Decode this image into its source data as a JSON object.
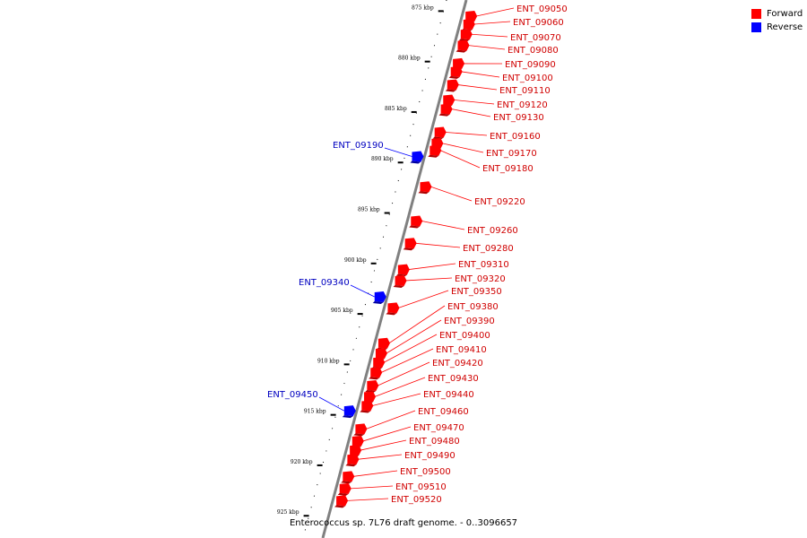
{
  "legend": {
    "forward": {
      "label": "Forward",
      "color": "#ff0000"
    },
    "reverse": {
      "label": "Reverse",
      "color": "#0000ff"
    }
  },
  "caption": "Enterococcus sp. 7L76 draft genome. - 0..3096657",
  "axis": {
    "ticks": [
      {
        "kbp": 875,
        "label": "875 kbp"
      },
      {
        "kbp": 880,
        "label": "880 kbp"
      },
      {
        "kbp": 885,
        "label": "885 kbp"
      },
      {
        "kbp": 890,
        "label": "890 kbp"
      },
      {
        "kbp": 895,
        "label": "895 kbp"
      },
      {
        "kbp": 900,
        "label": "900 kbp"
      },
      {
        "kbp": 905,
        "label": "905 kbp"
      },
      {
        "kbp": 910,
        "label": "910 kbp"
      },
      {
        "kbp": 915,
        "label": "915 kbp"
      },
      {
        "kbp": 920,
        "label": "920 kbp"
      },
      {
        "kbp": 925,
        "label": "925 kbp"
      }
    ]
  },
  "genes": [
    {
      "id": "ENT_09050",
      "strand": "forward",
      "kbp": 875.5
    },
    {
      "id": "ENT_09060",
      "strand": "forward",
      "kbp": 876.3
    },
    {
      "id": "ENT_09070",
      "strand": "forward",
      "kbp": 877.3
    },
    {
      "id": "ENT_09080",
      "strand": "forward",
      "kbp": 878.4
    },
    {
      "id": "ENT_09090",
      "strand": "forward",
      "kbp": 880.2
    },
    {
      "id": "ENT_09100",
      "strand": "forward",
      "kbp": 881.0
    },
    {
      "id": "ENT_09110",
      "strand": "forward",
      "kbp": 882.3
    },
    {
      "id": "ENT_09120",
      "strand": "forward",
      "kbp": 883.8
    },
    {
      "id": "ENT_09130",
      "strand": "forward",
      "kbp": 884.7
    },
    {
      "id": "ENT_09160",
      "strand": "forward",
      "kbp": 887.0
    },
    {
      "id": "ENT_09170",
      "strand": "forward",
      "kbp": 888.1
    },
    {
      "id": "ENT_09180",
      "strand": "forward",
      "kbp": 888.8
    },
    {
      "id": "ENT_09190",
      "strand": "reverse",
      "kbp": 889.4
    },
    {
      "id": "ENT_09220",
      "strand": "forward",
      "kbp": 892.4
    },
    {
      "id": "ENT_09260",
      "strand": "forward",
      "kbp": 895.8
    },
    {
      "id": "ENT_09280",
      "strand": "forward",
      "kbp": 898.0
    },
    {
      "id": "ENT_09310",
      "strand": "forward",
      "kbp": 900.6
    },
    {
      "id": "ENT_09320",
      "strand": "forward",
      "kbp": 901.7
    },
    {
      "id": "ENT_09340",
      "strand": "reverse",
      "kbp": 903.3
    },
    {
      "id": "ENT_09350",
      "strand": "forward",
      "kbp": 904.4
    },
    {
      "id": "ENT_09380",
      "strand": "forward",
      "kbp": 907.9
    },
    {
      "id": "ENT_09390",
      "strand": "forward",
      "kbp": 908.9
    },
    {
      "id": "ENT_09400",
      "strand": "forward",
      "kbp": 909.8
    },
    {
      "id": "ENT_09410",
      "strand": "forward",
      "kbp": 910.8
    },
    {
      "id": "ENT_09420",
      "strand": "forward",
      "kbp": 912.1
    },
    {
      "id": "ENT_09430",
      "strand": "forward",
      "kbp": 913.2
    },
    {
      "id": "ENT_09440",
      "strand": "forward",
      "kbp": 914.1
    },
    {
      "id": "ENT_09450",
      "strand": "reverse",
      "kbp": 914.6
    },
    {
      "id": "ENT_09460",
      "strand": "forward",
      "kbp": 916.4
    },
    {
      "id": "ENT_09470",
      "strand": "forward",
      "kbp": 917.6
    },
    {
      "id": "ENT_09480",
      "strand": "forward",
      "kbp": 918.5
    },
    {
      "id": "ENT_09490",
      "strand": "forward",
      "kbp": 919.4
    },
    {
      "id": "ENT_09500",
      "strand": "forward",
      "kbp": 921.1
    },
    {
      "id": "ENT_09510",
      "strand": "forward",
      "kbp": 922.3
    },
    {
      "id": "ENT_09520",
      "strand": "forward",
      "kbp": 923.5
    }
  ]
}
